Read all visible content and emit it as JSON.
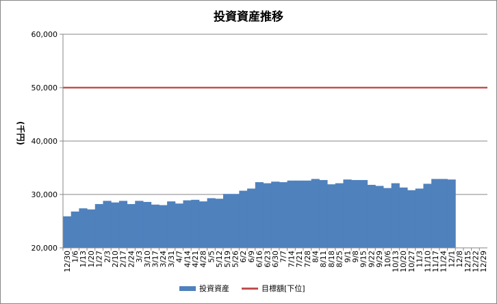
{
  "chart_data": {
    "type": "area",
    "title": "投資資産推移",
    "ylabel": "(千円)",
    "xlabel": "",
    "ylim": [
      20000,
      60000
    ],
    "yticks": [
      "20,000",
      "30,000",
      "40,000",
      "50,000",
      "60,000"
    ],
    "yticks_values": [
      20000,
      30000,
      40000,
      50000,
      60000
    ],
    "grid": "horizontal",
    "legend_position": "bottom",
    "categories": [
      "12/30",
      "1/6",
      "1/13",
      "1/20",
      "1/27",
      "2/3",
      "2/10",
      "2/17",
      "2/24",
      "3/3",
      "3/10",
      "3/17",
      "3/24",
      "3/31",
      "4/7",
      "4/14",
      "4/21",
      "4/28",
      "5/5",
      "5/12",
      "5/19",
      "5/26",
      "6/2",
      "6/9",
      "6/16",
      "6/23",
      "6/30",
      "7/7",
      "7/14",
      "7/21",
      "7/28",
      "8/4",
      "8/11",
      "8/18",
      "8/25",
      "9/1",
      "9/8",
      "9/15",
      "9/22",
      "9/29",
      "10/6",
      "10/13",
      "10/20",
      "10/27",
      "11/3",
      "11/10",
      "11/17",
      "11/24",
      "12/1",
      "12/8",
      "12/15",
      "12/22",
      "12/29"
    ],
    "series": [
      {
        "name": "投資資産",
        "kind": "area",
        "color": "#4f81bd",
        "values": [
          25900,
          26800,
          27400,
          27200,
          28200,
          28800,
          28500,
          28800,
          28200,
          28800,
          28600,
          28100,
          28000,
          28700,
          28300,
          28900,
          29000,
          28700,
          29300,
          29200,
          30100,
          30100,
          30700,
          31100,
          32300,
          32100,
          32400,
          32300,
          32600,
          32600,
          32600,
          32900,
          32700,
          31900,
          32100,
          32800,
          32700,
          32700,
          31800,
          31600,
          31200,
          32100,
          31300,
          30800,
          31100,
          32000,
          32900,
          32900,
          32800,
          null,
          null,
          null,
          null
        ]
      },
      {
        "name": "目標額[下位]",
        "kind": "line",
        "color": "#c0504d",
        "values": [
          50000,
          50000,
          50000,
          50000,
          50000,
          50000,
          50000,
          50000,
          50000,
          50000,
          50000,
          50000,
          50000,
          50000,
          50000,
          50000,
          50000,
          50000,
          50000,
          50000,
          50000,
          50000,
          50000,
          50000,
          50000,
          50000,
          50000,
          50000,
          50000,
          50000,
          50000,
          50000,
          50000,
          50000,
          50000,
          50000,
          50000,
          50000,
          50000,
          50000,
          50000,
          50000,
          50000,
          50000,
          50000,
          50000,
          50000,
          50000,
          50000,
          50000,
          50000,
          50000,
          50000
        ]
      }
    ]
  }
}
